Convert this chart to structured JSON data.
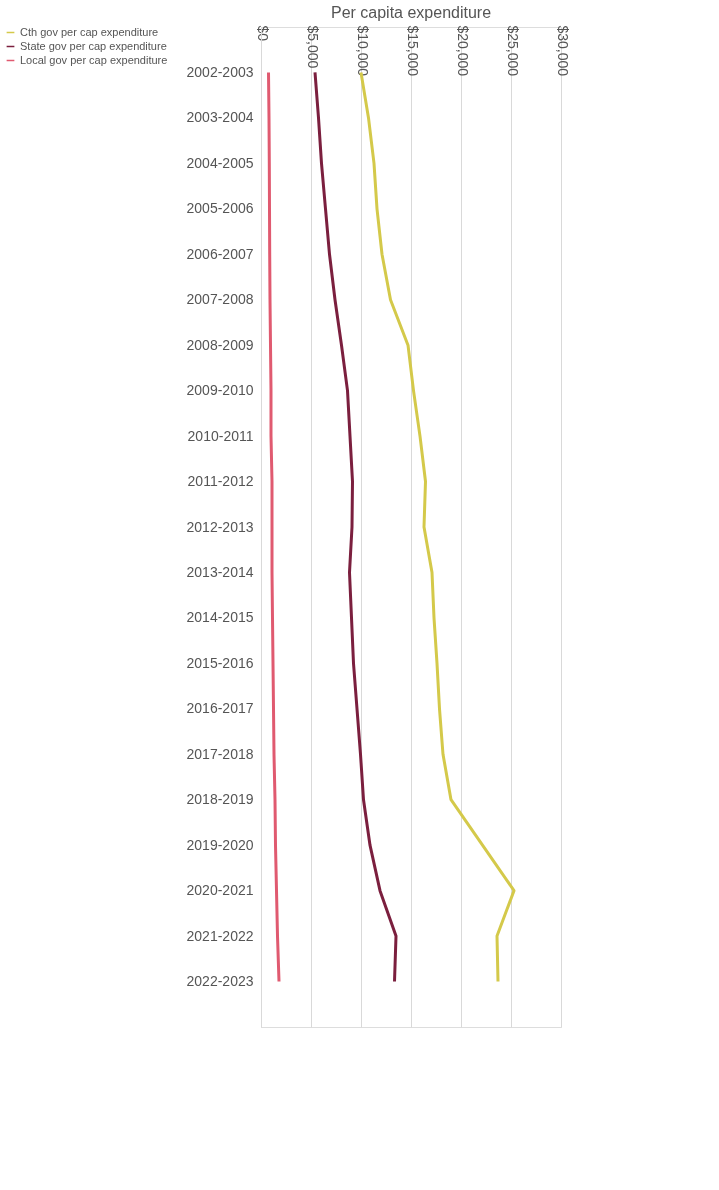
{
  "chart_data": {
    "type": "line",
    "orientation": "horizontal",
    "title": "Per capita expenditure",
    "categories": [
      "2002-2003",
      "2003-2004",
      "2004-2005",
      "2005-2006",
      "2006-2007",
      "2007-2008",
      "2008-2009",
      "2009-2010",
      "2010-2011",
      "2011-2012",
      "2012-2013",
      "2013-2014",
      "2014-2015",
      "2015-2016",
      "2016-2017",
      "2017-2018",
      "2018-2019",
      "2019-2020",
      "2020-2021",
      "2021-2022",
      "2022-2023"
    ],
    "series": [
      {
        "name": "Cth gov per cap expenditure",
        "color": "#d4c94a",
        "values": [
          10000,
          10750,
          11300,
          11600,
          12100,
          12950,
          14700,
          15250,
          15900,
          16450,
          16300,
          17100,
          17300,
          17600,
          17850,
          18200,
          19000,
          22150,
          25300,
          23600,
          23700
        ]
      },
      {
        "name": "State gov per cap expenditure",
        "color": "#7b1f3e",
        "values": [
          5400,
          5750,
          6050,
          6450,
          6850,
          7400,
          8050,
          8650,
          8900,
          9150,
          9100,
          8850,
          9050,
          9250,
          9600,
          9950,
          10250,
          10900,
          11900,
          13500,
          13350
        ]
      },
      {
        "name": "Local gov per cap expenditure",
        "color": "#e05a70",
        "values": [
          750,
          800,
          830,
          850,
          870,
          900,
          950,
          1000,
          1000,
          1100,
          1100,
          1100,
          1150,
          1200,
          1250,
          1300,
          1400,
          1450,
          1550,
          1650,
          1800
        ]
      }
    ],
    "xlim": [
      0,
      30000
    ],
    "xticks": [
      {
        "value": 0,
        "label": "$0"
      },
      {
        "value": 5000,
        "label": "$5,000"
      },
      {
        "value": 10000,
        "label": "$10,000"
      },
      {
        "value": 15000,
        "label": "$15,000"
      },
      {
        "value": 20000,
        "label": "$20,000"
      },
      {
        "value": 25000,
        "label": "$25,000"
      },
      {
        "value": 30000,
        "label": "$30,000"
      }
    ],
    "grid": "x",
    "legend": "left",
    "line_style": "solid",
    "marker": "none"
  }
}
